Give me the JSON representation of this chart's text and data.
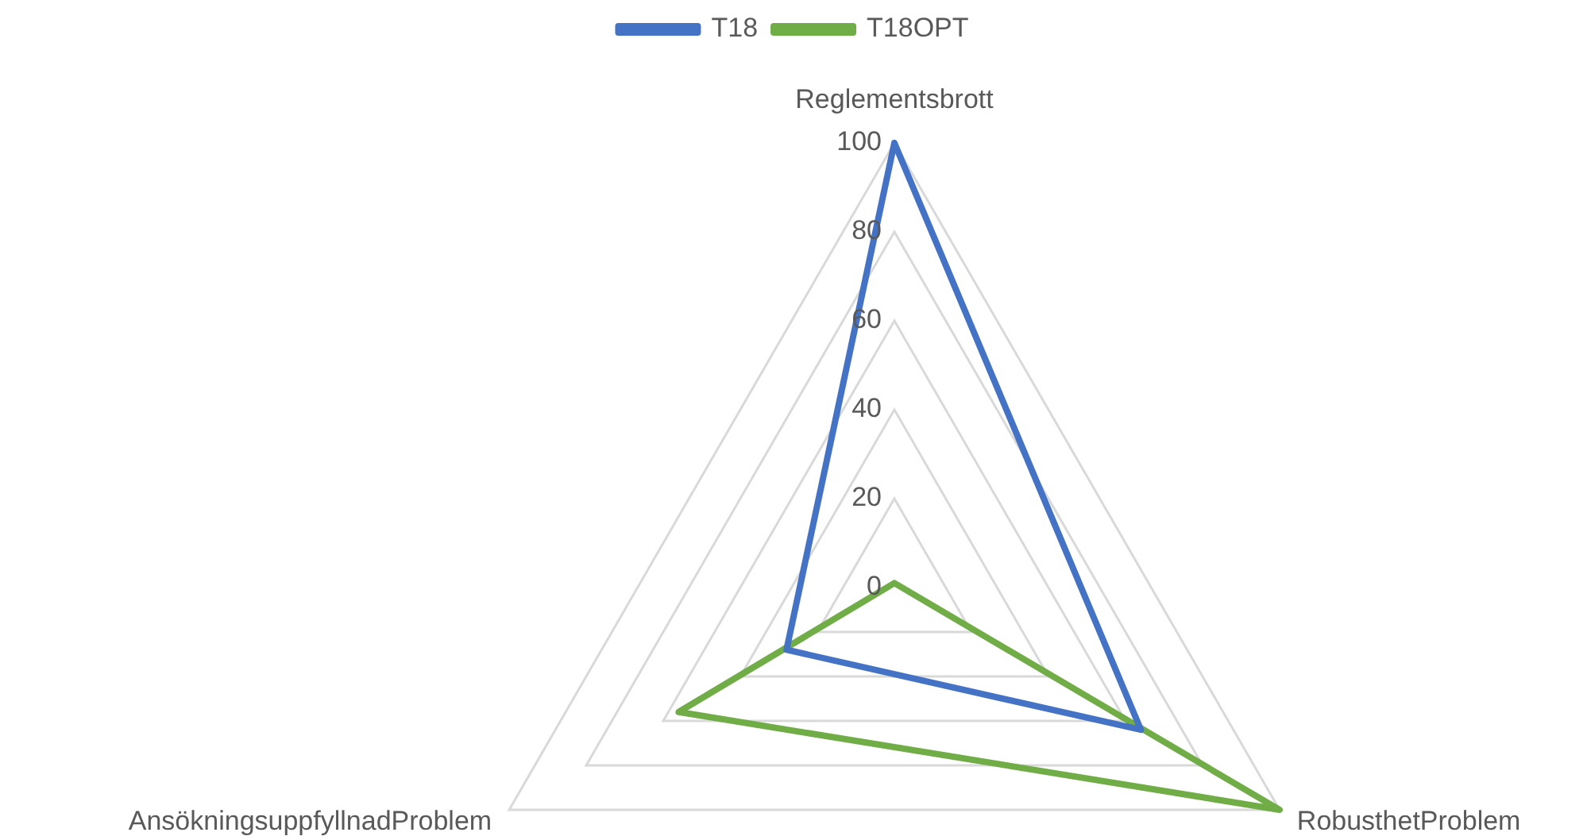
{
  "chart_data": {
    "type": "radar",
    "categories": [
      "Reglementsbrott",
      "RobusthetProblem",
      "AnsökningsuppfyllnadProblem"
    ],
    "series": [
      {
        "name": "T18",
        "color": "#4472c4",
        "values": [
          100,
          64,
          28
        ]
      },
      {
        "name": "T18OPT",
        "color": "#70ad47",
        "values": [
          1,
          100,
          56
        ]
      }
    ],
    "ylim": [
      0,
      100
    ],
    "yticks": [
      0,
      20,
      40,
      60,
      80,
      100
    ],
    "grid": true,
    "legend": "top",
    "marker": "none",
    "line_style": "solid"
  }
}
